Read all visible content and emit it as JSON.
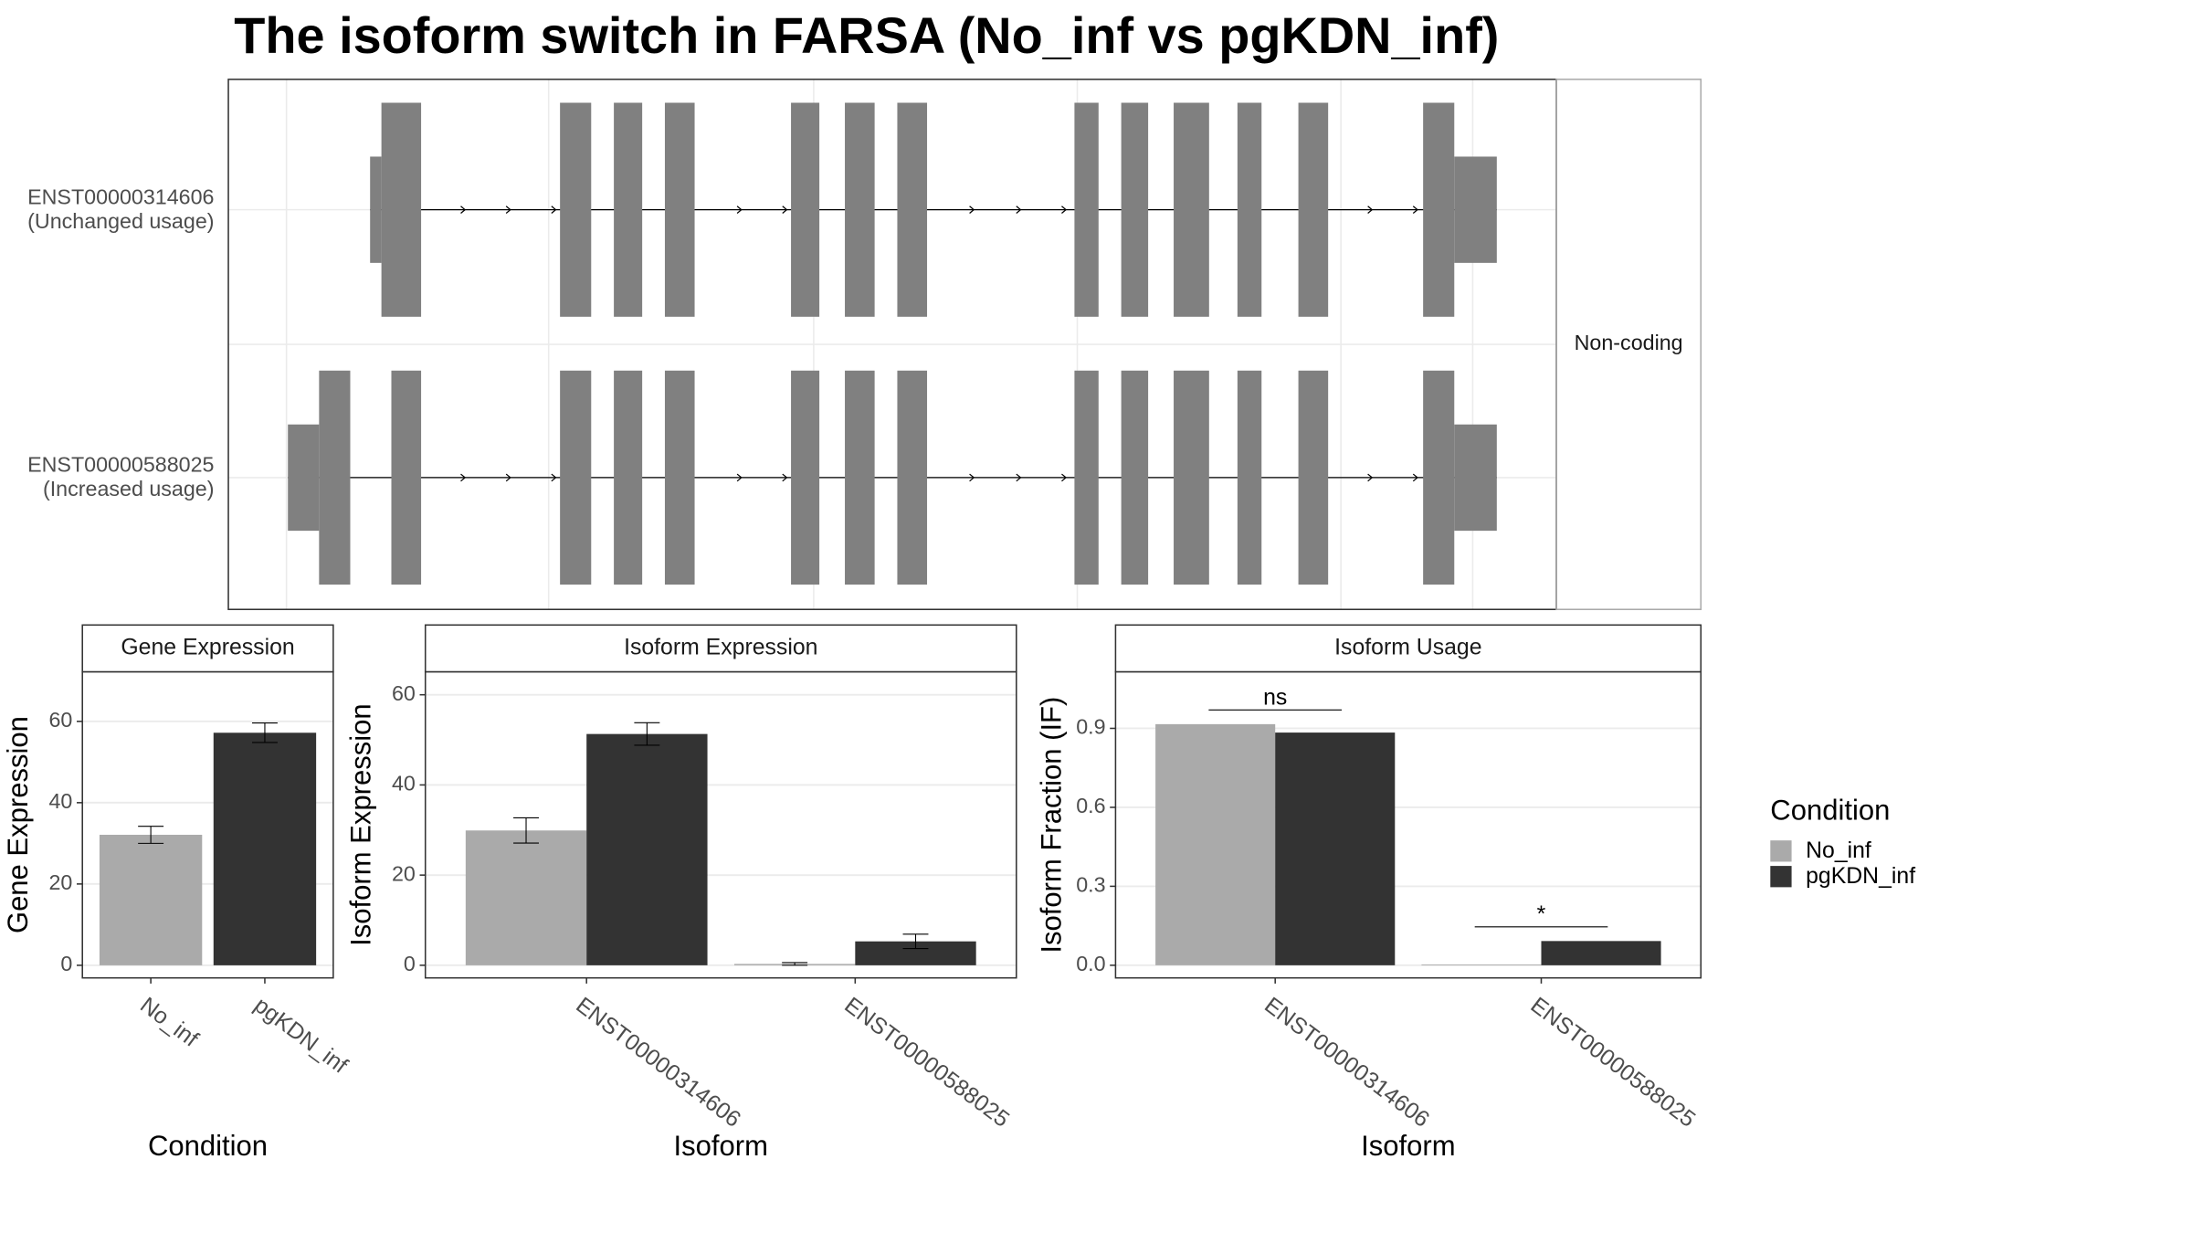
{
  "title": "The isoform switch in FARSA (No_inf vs pgKDN_inf)",
  "structure": {
    "isoforms": [
      {
        "name": "ENST00000314606",
        "usage": "(Unchanged usage)"
      },
      {
        "name": "ENST00000588025",
        "usage": "(Increased usage)"
      }
    ],
    "strip": "Non-coding"
  },
  "legend_title": "Condition",
  "chart_data": [
    {
      "type": "bar",
      "panel_title": "Gene Expression",
      "x_label": "Condition",
      "y_label": "Gene Expression",
      "categories": [
        "No_inf",
        "pgKDN_inf"
      ],
      "values": [
        32.1,
        57.2
      ],
      "errors": [
        2.1,
        2.4
      ],
      "colors": [
        "#aaaaaa",
        "#333333"
      ],
      "ylim": [
        -3.1,
        72.2
      ],
      "yticks": [
        0,
        20,
        40,
        60
      ],
      "grid": true
    },
    {
      "type": "bar",
      "panel_title": "Isoform Expression",
      "x_label": "Isoform",
      "y_label": "Isoform Expression",
      "categories": [
        "ENST00000314606",
        "ENST00000588025"
      ],
      "series": [
        {
          "name": "No_inf",
          "color": "#aaaaaa",
          "values": [
            29.9,
            0.3
          ],
          "errors": [
            2.8,
            0.3
          ]
        },
        {
          "name": "pgKDN_inf",
          "color": "#333333",
          "values": [
            51.3,
            5.3
          ],
          "errors": [
            2.5,
            1.6
          ]
        }
      ],
      "ylim": [
        -2.8,
        65.1
      ],
      "yticks": [
        0,
        20,
        40,
        60
      ],
      "grid": true
    },
    {
      "type": "bar",
      "panel_title": "Isoform Usage",
      "x_label": "Isoform",
      "y_label": "Isoform Fraction (IF)",
      "categories": [
        "ENST00000314606",
        "ENST00000588025"
      ],
      "series": [
        {
          "name": "No_inf",
          "color": "#aaaaaa",
          "values": [
            0.916,
            0.003
          ]
        },
        {
          "name": "pgKDN_inf",
          "color": "#333333",
          "values": [
            0.884,
            0.092
          ]
        }
      ],
      "annotations": [
        "ns",
        "*"
      ],
      "ylim": [
        -0.048,
        1.115
      ],
      "yticks": [
        {
          "value": 0,
          "label": "0.0"
        },
        0.3,
        0.6,
        0.9
      ],
      "grid": true
    }
  ]
}
